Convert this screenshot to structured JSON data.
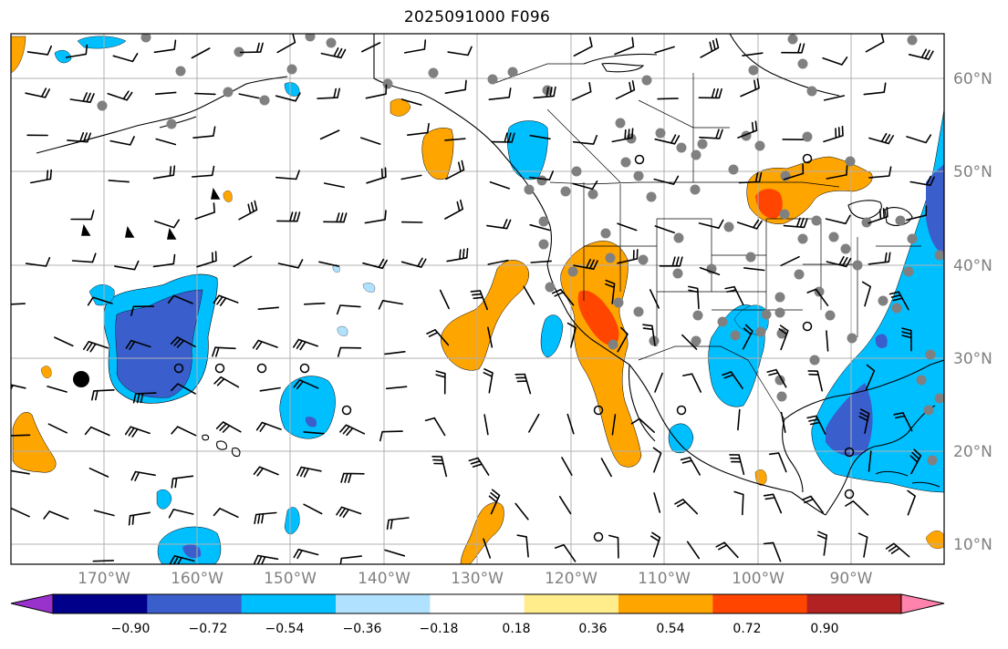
{
  "title": "2025091000 F096",
  "lat_labels": [
    "60°N",
    "50°N",
    "40°N",
    "30°N",
    "20°N",
    "10°N"
  ],
  "lon_labels": [
    "170°W",
    "160°W",
    "150°W",
    "140°W",
    "130°W",
    "120°W",
    "110°W",
    "100°W",
    "90°W"
  ],
  "colorbar": {
    "ticks": [
      "−0.90",
      "−0.72",
      "−0.54",
      "−0.36",
      "−0.18",
      "0.18",
      "0.36",
      "0.54",
      "0.72",
      "0.90"
    ],
    "colors": [
      "#9932cc",
      "#00008b",
      "#3a5fcd",
      "#00bfff",
      "#b0e2ff",
      "#ffffff",
      "#ffec8b",
      "#ffa500",
      "#ff4500",
      "#b22222",
      "#ff83ac"
    ]
  },
  "palette": {
    "land_line": "#000000",
    "grid": "#b0b0b0",
    "station_dot": "#808080",
    "barb": "#000000"
  }
}
